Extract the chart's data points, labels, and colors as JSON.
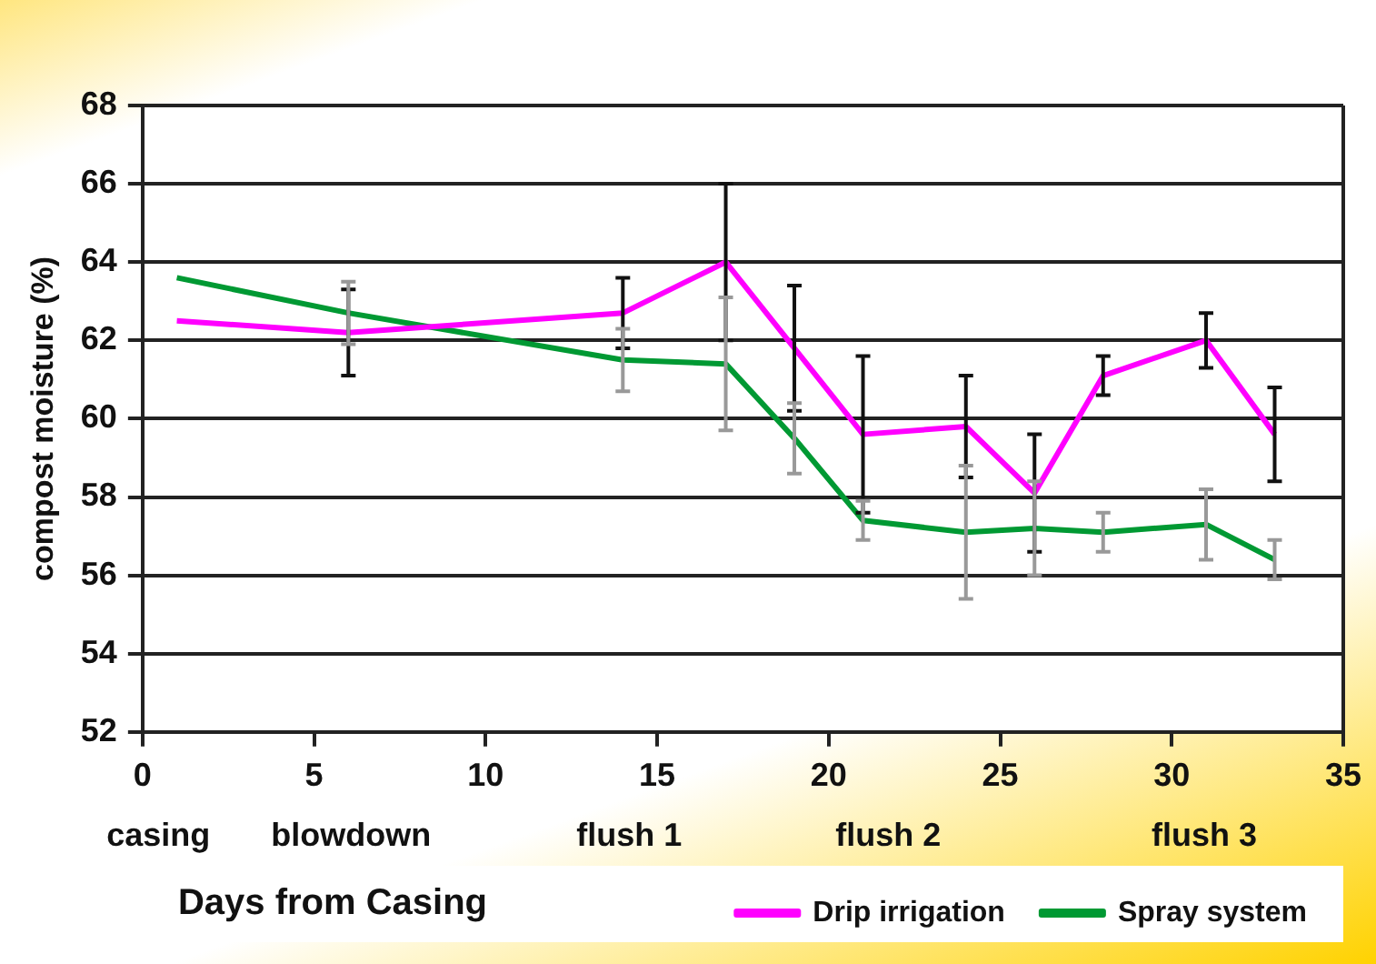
{
  "chart_data": {
    "type": "line",
    "xlabel": "Days from Casing",
    "ylabel": "compost moisture (%)",
    "x": [
      1,
      6,
      14,
      17,
      19,
      21,
      24,
      26,
      28,
      31,
      33
    ],
    "series": [
      {
        "name": "Drip irrigation",
        "color": "#ff00ff",
        "values": [
          62.5,
          62.2,
          62.7,
          64.0,
          61.8,
          59.6,
          59.8,
          58.1,
          61.1,
          62.0,
          59.6
        ],
        "errors": [
          null,
          1.1,
          0.9,
          2.0,
          1.6,
          2.0,
          1.3,
          1.5,
          0.5,
          0.7,
          1.2
        ]
      },
      {
        "name": "Spray system",
        "color": "#009933",
        "values": [
          63.6,
          62.7,
          61.5,
          61.4,
          59.5,
          57.4,
          57.1,
          57.2,
          57.1,
          57.3,
          56.4
        ],
        "errors": [
          null,
          0.8,
          0.8,
          1.7,
          0.9,
          0.5,
          1.7,
          1.2,
          0.5,
          0.9,
          0.5
        ]
      }
    ],
    "xlim": [
      0,
      35
    ],
    "xticks": [
      0,
      5,
      10,
      15,
      20,
      25,
      30,
      35
    ],
    "ylim": [
      52,
      68
    ],
    "yticks": [
      52,
      54,
      56,
      58,
      60,
      62,
      64,
      66,
      68
    ],
    "annotations": [
      "casing",
      "blowdown",
      "flush 1",
      "flush 2",
      "flush 3"
    ],
    "grid": "y",
    "legend": "bottom right",
    "marker": "none",
    "line_style": "solid"
  }
}
